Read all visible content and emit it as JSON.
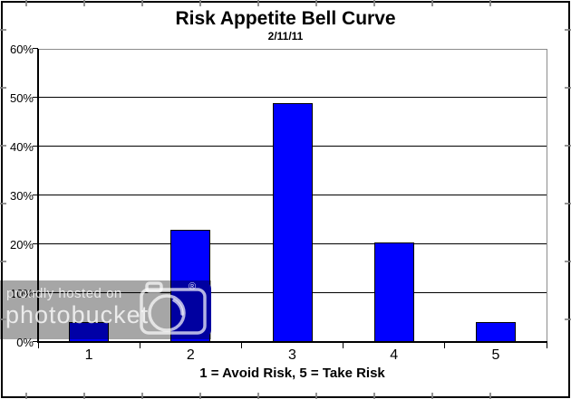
{
  "chart_data": {
    "type": "bar",
    "title": "Risk Appetite Bell Curve",
    "subtitle": "2/11/11",
    "xlabel": "1 = Avoid Risk, 5 = Take Risk",
    "ylabel": "",
    "categories": [
      "1",
      "2",
      "3",
      "4",
      "5"
    ],
    "values": [
      4,
      23,
      48.8,
      20.4,
      4
    ],
    "ylim": [
      0,
      60
    ],
    "ytick_step": 10,
    "ytick_values": [
      0,
      10,
      20,
      30,
      40,
      50,
      60
    ],
    "ytick_labels": [
      "0%",
      "10%",
      "20%",
      "30%",
      "40%",
      "50%",
      "60%"
    ],
    "grid": "horizontal",
    "legend": "none",
    "bar_color": "#0000ff",
    "bar_border_color": "#000000"
  },
  "watermark": {
    "line1": "proudly hosted on",
    "line2": "photobucket",
    "registered": "®",
    "overlay_color": "rgba(0,0,0,0.35)",
    "badge_color": "#0000a0",
    "camera_icon": "camera-icon"
  },
  "colors": {
    "background": "#ffffff",
    "axis": "#000000",
    "gridline": "#000000",
    "plot_border_gray": "#8c8c8c",
    "outer_border": "#000000",
    "edge_tick_gray": "#828282"
  }
}
